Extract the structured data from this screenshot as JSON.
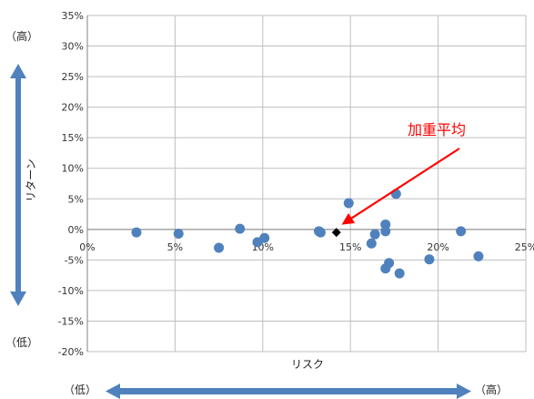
{
  "chart_data": {
    "type": "scatter",
    "title": "",
    "xlabel": "リスク",
    "ylabel": "リターン",
    "xlim": [
      0,
      25
    ],
    "ylim": [
      -20,
      35
    ],
    "x_ticks": [
      "0%",
      "5%",
      "10%",
      "15%",
      "20%",
      "25%"
    ],
    "y_ticks": [
      "35%",
      "30%",
      "25%",
      "20%",
      "15%",
      "10%",
      "5%",
      "0%",
      "-5%",
      "-10%",
      "-15%",
      "-20%"
    ],
    "grid": true,
    "series": [
      {
        "color": "#4f81bd",
        "marker": "circle",
        "points": [
          [
            2.8,
            -0.5
          ],
          [
            5.2,
            -0.7
          ],
          [
            7.5,
            -3.0
          ],
          [
            8.7,
            0.1
          ],
          [
            9.7,
            -2.1
          ],
          [
            10.1,
            -1.4
          ],
          [
            13.2,
            -0.3
          ],
          [
            13.3,
            -0.5
          ],
          [
            14.9,
            4.3
          ],
          [
            16.2,
            -2.3
          ],
          [
            16.4,
            -0.8
          ],
          [
            17.0,
            0.8
          ],
          [
            17.0,
            -0.3
          ],
          [
            17.0,
            -6.4
          ],
          [
            17.2,
            -5.5
          ],
          [
            17.6,
            5.8
          ],
          [
            17.8,
            -7.2
          ],
          [
            19.5,
            -4.9
          ],
          [
            21.3,
            -0.3
          ],
          [
            22.3,
            -4.4
          ]
        ]
      },
      {
        "color": "#000000",
        "marker": "diamond",
        "points": [
          [
            14.2,
            -0.5
          ]
        ]
      }
    ],
    "annotation": {
      "text": "加重平均",
      "color": "#ff0000",
      "target": [
        14.2,
        -0.5
      ]
    },
    "axis_extremes": {
      "y_high": "（高）",
      "y_low": "（低）",
      "x_low": "（低）",
      "x_high": "（高）"
    },
    "arrow_color": "#4f81bd"
  }
}
